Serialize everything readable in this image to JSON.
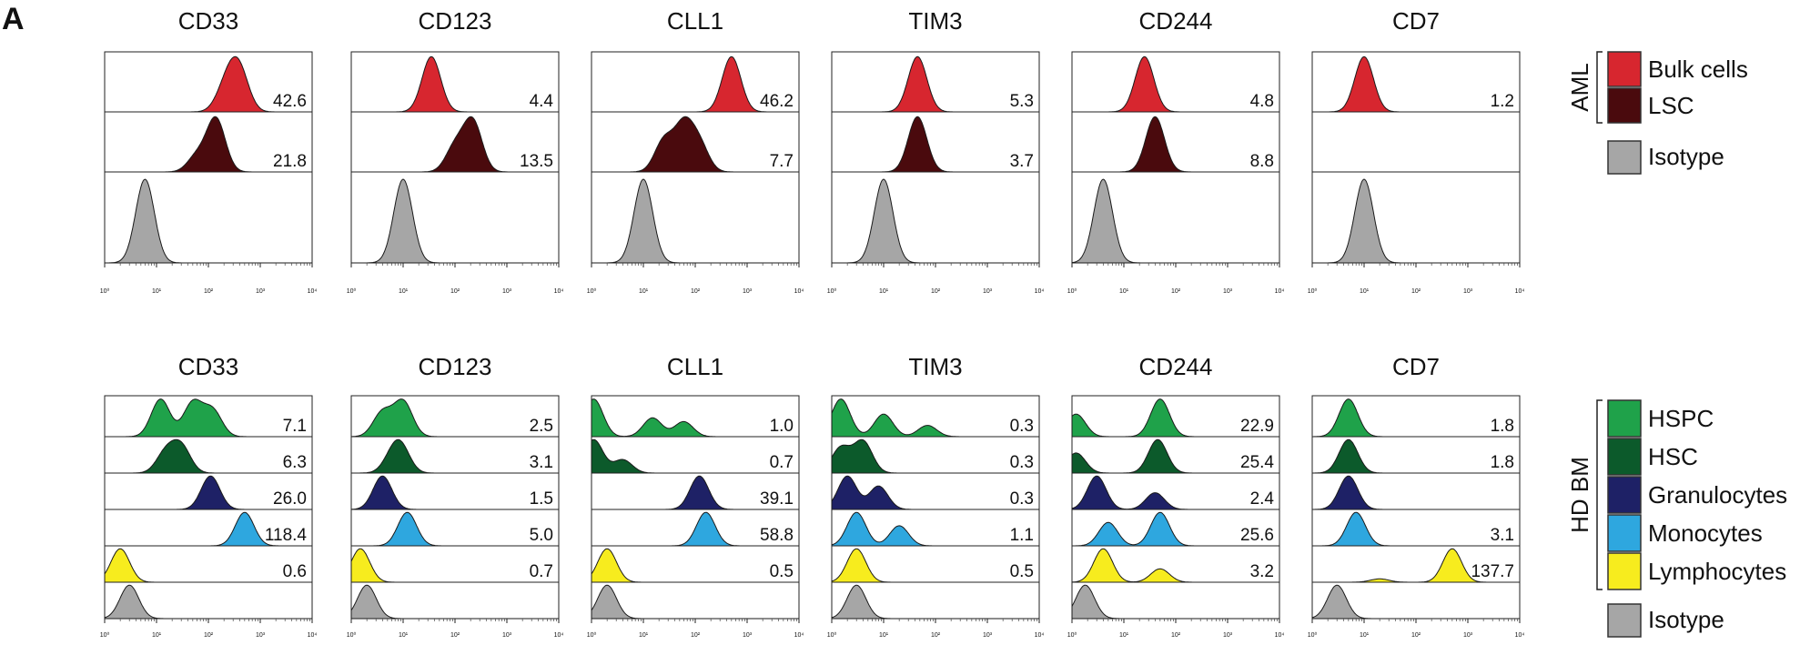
{
  "panel_label": "A",
  "chart_data": {
    "type": "histogram",
    "xscale": "log",
    "xlim": [
      1,
      10000
    ],
    "x_tick_labels": [
      "10⁰",
      "10¹",
      "10²",
      "10³",
      "10⁴"
    ],
    "colors": {
      "Bulk cells": "#d7262f",
      "LSC": "#4a0a0d",
      "Isotype": "#a6a6a6",
      "HSPC": "#1fa24a",
      "HSC": "#0c5a2b",
      "Granulocytes": "#1e2166",
      "Monocytes": "#2ea7df",
      "Lymphocytes": "#f7ec1e"
    },
    "panels": [
      {
        "group": "AML",
        "markers": [
          "CD33",
          "CD123",
          "CLL1",
          "TIM3",
          "CD244",
          "CD7"
        ],
        "rows": [
          {
            "series": "Bulk cells",
            "values": [
              "42.6",
              "4.4",
              "46.2",
              "5.3",
              "4.8",
              "1.2"
            ],
            "peaks": [
              [
                [
                  200,
                  0.6
                ],
                [
                  300,
                  0.75
                ],
                [
                  420,
                  1.0
                ]
              ],
              [
                [
                  35,
                  1.0
                ]
              ],
              [
                [
                  500,
                  1.0
                ]
              ],
              [
                [
                  45,
                  1.0
                ]
              ],
              [
                [
                  25,
                  1.0
                ]
              ],
              [
                [
                  10,
                  1.0
                ]
              ]
            ]
          },
          {
            "series": "LSC",
            "values": [
              "21.8",
              "13.5",
              "7.7",
              "3.7",
              "8.8",
              null
            ],
            "peaks": [
              [
                [
                  140,
                  1.0
                ],
                [
                  60,
                  0.3
                ]
              ],
              [
                [
                  220,
                  1.0
                ],
                [
                  100,
                  0.5
                ]
              ],
              [
                [
                  60,
                  1.0
                ],
                [
                  25,
                  0.7
                ],
                [
                  120,
                  0.6
                ]
              ],
              [
                [
                  45,
                  1.0
                ]
              ],
              [
                [
                  40,
                  1.0
                ]
              ],
              []
            ]
          },
          {
            "series": "Isotype",
            "values": [
              null,
              null,
              null,
              null,
              null,
              null
            ],
            "peaks": [
              [
                [
                  6,
                  1.0
                ]
              ],
              [
                [
                  10,
                  1.0
                ]
              ],
              [
                [
                  10,
                  1.0
                ]
              ],
              [
                [
                  10,
                  1.0
                ]
              ],
              [
                [
                  4,
                  1.0
                ]
              ],
              [
                [
                  10,
                  1.0
                ]
              ]
            ]
          }
        ]
      },
      {
        "group": "HD BM",
        "markers": [
          "CD33",
          "CD123",
          "CLL1",
          "TIM3",
          "CD244",
          "CD7"
        ],
        "rows": [
          {
            "series": "HSPC",
            "values": [
              "7.1",
              "2.5",
              "1.0",
              "0.3",
              "22.9",
              "1.8"
            ],
            "peaks": [
              [
                [
                  12,
                  1.0
                ],
                [
                  50,
                  0.9
                ],
                [
                  120,
                  0.7
                ]
              ],
              [
                [
                  4,
                  0.7
                ],
                [
                  10,
                  1.0
                ]
              ],
              [
                [
                  1.1,
                  1.0
                ],
                [
                  15,
                  0.5
                ],
                [
                  60,
                  0.4
                ]
              ],
              [
                [
                  1.5,
                  1.0
                ],
                [
                  10,
                  0.6
                ],
                [
                  70,
                  0.3
                ]
              ],
              [
                [
                  1.2,
                  0.6
                ],
                [
                  50,
                  1.0
                ]
              ],
              [
                [
                  5,
                  1.0
                ]
              ]
            ]
          },
          {
            "series": "HSC",
            "values": [
              "6.3",
              "3.1",
              "0.7",
              "0.3",
              "25.4",
              "1.8"
            ],
            "peaks": [
              [
                [
                  15,
                  0.7
                ],
                [
                  30,
                  0.9
                ]
              ],
              [
                [
                  6,
                  0.5
                ],
                [
                  9,
                  1.0
                ]
              ],
              [
                [
                  1.1,
                  1.0
                ],
                [
                  4,
                  0.4
                ]
              ],
              [
                [
                  1.5,
                  0.8
                ],
                [
                  4,
                  1.0
                ]
              ],
              [
                [
                  1.2,
                  0.6
                ],
                [
                  45,
                  1.0
                ]
              ],
              [
                [
                  5,
                  1.0
                ]
              ]
            ]
          },
          {
            "series": "Granulocytes",
            "values": [
              "26.0",
              "1.5",
              "39.1",
              "0.3",
              "2.4",
              null
            ],
            "peaks": [
              [
                [
                  110,
                  1.0
                ]
              ],
              [
                [
                  4,
                  1.0
                ]
              ],
              [
                [
                  120,
                  1.0
                ]
              ],
              [
                [
                  2,
                  1.0
                ],
                [
                  8,
                  0.7
                ]
              ],
              [
                [
                  3,
                  1.0
                ],
                [
                  40,
                  0.5
                ]
              ],
              [
                [
                  5,
                  1.0
                ]
              ]
            ]
          },
          {
            "series": "Monocytes",
            "values": [
              "118.4",
              "5.0",
              "58.8",
              "1.1",
              "25.6",
              "3.1"
            ],
            "peaks": [
              [
                [
                  500,
                  1.0
                ]
              ],
              [
                [
                  12,
                  1.0
                ]
              ],
              [
                [
                  160,
                  1.0
                ]
              ],
              [
                [
                  3,
                  1.0
                ],
                [
                  20,
                  0.6
                ]
              ],
              [
                [
                  5,
                  0.7
                ],
                [
                  50,
                  1.0
                ]
              ],
              [
                [
                  7,
                  1.0
                ]
              ]
            ]
          },
          {
            "series": "Lymphocytes",
            "values": [
              "0.6",
              "0.7",
              "0.5",
              "0.5",
              "3.2",
              "137.7"
            ],
            "peaks": [
              [
                [
                  2,
                  1.0
                ]
              ],
              [
                [
                  1.5,
                  1.0
                ]
              ],
              [
                [
                  2,
                  1.0
                ]
              ],
              [
                [
                  3,
                  1.0
                ]
              ],
              [
                [
                  4,
                  1.0
                ],
                [
                  50,
                  0.4
                ]
              ],
              [
                [
                  20,
                  0.1
                ],
                [
                  500,
                  1.0
                ]
              ]
            ]
          },
          {
            "series": "Isotype",
            "values": [
              null,
              null,
              null,
              null,
              null,
              null
            ],
            "peaks": [
              [
                [
                  3,
                  1.0
                ]
              ],
              [
                [
                  2,
                  1.0
                ]
              ],
              [
                [
                  2,
                  1.0
                ]
              ],
              [
                [
                  3,
                  1.0
                ]
              ],
              [
                [
                  1.8,
                  1.0
                ]
              ],
              [
                [
                  3,
                  1.0
                ]
              ]
            ]
          }
        ]
      }
    ],
    "legends": [
      {
        "group": "AML",
        "items": [
          "Bulk cells",
          "LSC"
        ],
        "extra": "Isotype"
      },
      {
        "group": "HD BM",
        "items": [
          "HSPC",
          "HSC",
          "Granulocytes",
          "Monocytes",
          "Lymphocytes"
        ],
        "extra": "Isotype"
      }
    ]
  }
}
